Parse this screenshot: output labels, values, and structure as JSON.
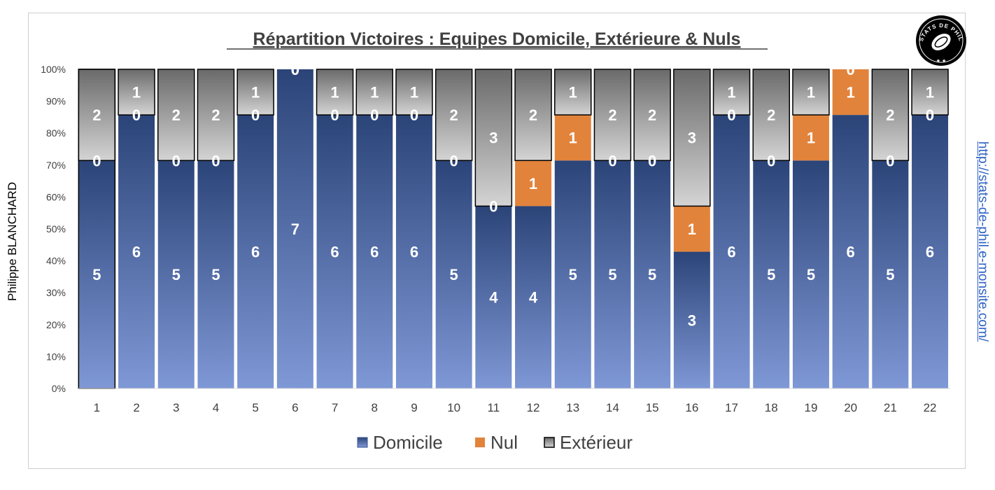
{
  "side_label_left": "Philippe BLANCHARD",
  "side_link_right": "http://stats-de-phil.e-monsite.com/",
  "logo_text": "STATS DE PHIL",
  "colors": {
    "domicile_top": "#2b4478",
    "domicile_bottom": "#7f98d6",
    "nul": "#e2833b",
    "exterieur_top": "#6a6a6a",
    "exterieur_bottom": "#d2d2d2"
  },
  "chart_data": {
    "type": "bar",
    "stacked": "percent",
    "title": "Répartition Victoires : Equipes Domicile, Extérieure & Nuls",
    "categories": [
      "1",
      "2",
      "3",
      "4",
      "5",
      "6",
      "7",
      "8",
      "9",
      "10",
      "11",
      "12",
      "13",
      "14",
      "15",
      "16",
      "17",
      "18",
      "19",
      "20",
      "21",
      "22"
    ],
    "series": [
      {
        "name": "Domicile",
        "values": [
          5,
          6,
          5,
          5,
          6,
          7,
          6,
          6,
          6,
          5,
          4,
          4,
          5,
          5,
          5,
          3,
          6,
          5,
          5,
          6,
          5,
          6
        ]
      },
      {
        "name": "Nul",
        "values": [
          0,
          0,
          0,
          0,
          0,
          0,
          0,
          0,
          0,
          0,
          0,
          1,
          1,
          0,
          0,
          1,
          0,
          0,
          1,
          1,
          0,
          0
        ]
      },
      {
        "name": "Extérieur",
        "values": [
          2,
          1,
          2,
          2,
          1,
          0,
          1,
          1,
          1,
          2,
          3,
          2,
          1,
          2,
          2,
          3,
          1,
          2,
          1,
          0,
          2,
          1
        ]
      }
    ],
    "yticks": [
      "0%",
      "10%",
      "20%",
      "30%",
      "40%",
      "50%",
      "60%",
      "70%",
      "80%",
      "90%",
      "100%"
    ],
    "ylim": [
      0,
      100
    ],
    "legend_position": "bottom"
  }
}
